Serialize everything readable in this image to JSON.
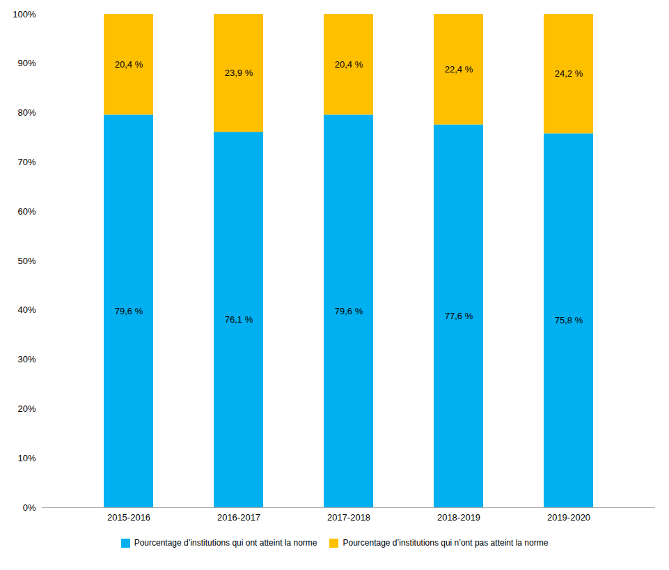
{
  "chart_data": {
    "type": "bar",
    "stacked": true,
    "data_labels": true,
    "grid": false,
    "legend": "bottom",
    "categories": [
      "2015-2016",
      "2016-2017",
      "2017-2018",
      "2018-2019",
      "2019-2020"
    ],
    "series": [
      {
        "name": "Pourcentage d’institutions qui ont atteint la norme",
        "color": "#00B0F0",
        "values": [
          79.6,
          76.1,
          79.6,
          77.6,
          75.8
        ],
        "value_labels": [
          "79,6 %",
          "76,1 %",
          "79,6 %",
          "77,6 %",
          "75,8 %"
        ]
      },
      {
        "name": "Pourcentage d’institutions qui n’ont pas atteint la norme",
        "color": "#FFC000",
        "values": [
          20.4,
          23.9,
          20.4,
          22.4,
          24.2
        ],
        "value_labels": [
          "20,4 %",
          "23,9 %",
          "20,4 %",
          "22,4 %",
          "24,2 %"
        ]
      }
    ],
    "ylim": [
      0,
      100
    ],
    "yticks": [
      {
        "value": 0,
        "label": "0%"
      },
      {
        "value": 10,
        "label": "10%"
      },
      {
        "value": 20,
        "label": "20%"
      },
      {
        "value": 30,
        "label": "30%"
      },
      {
        "value": 40,
        "label": "40%"
      },
      {
        "value": 50,
        "label": "50%"
      },
      {
        "value": 60,
        "label": "60%"
      },
      {
        "value": 70,
        "label": "70%"
      },
      {
        "value": 80,
        "label": "80%"
      },
      {
        "value": 90,
        "label": "90%"
      },
      {
        "value": 100,
        "label": "100%"
      }
    ]
  }
}
